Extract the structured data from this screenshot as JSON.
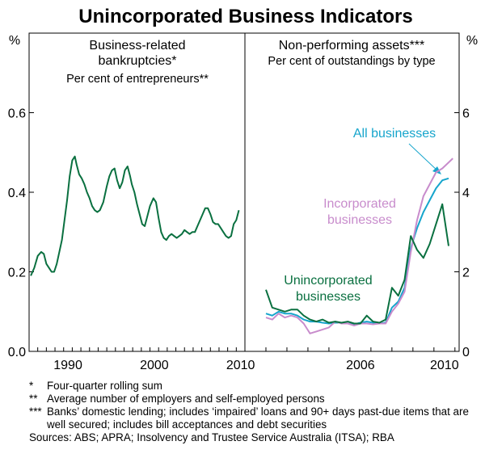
{
  "title": "Unincorporated Business Indicators",
  "chart_data": [
    {
      "type": "line",
      "panel": "left",
      "title": "Business-related",
      "title_line2": "bankruptcies*",
      "subtitle": "Per cent of entrepreneurs**",
      "ylabel": "%",
      "xlim": [
        1986.0,
        2011.0
      ],
      "ylim": [
        0,
        0.8
      ],
      "yticks": [
        "0.0",
        "0.2",
        "0.4",
        "0.6"
      ],
      "xticks": [
        "1990",
        "2000",
        "2010"
      ],
      "grid": false,
      "series": [
        {
          "color": "#0a7040",
          "x": [
            1986.2,
            1986.6,
            1987.0,
            1987.4,
            1987.7,
            1988.0,
            1988.3,
            1988.6,
            1988.9,
            1989.2,
            1989.5,
            1989.8,
            1990.1,
            1990.4,
            1990.7,
            1991.0,
            1991.3,
            1991.5,
            1991.8,
            1992.1,
            1992.4,
            1992.7,
            1993.0,
            1993.3,
            1993.6,
            1993.9,
            1994.2,
            1994.6,
            1995.0,
            1995.3,
            1995.6,
            1995.9,
            1996.2,
            1996.5,
            1996.8,
            1997.1,
            1997.4,
            1997.7,
            1997.9,
            1998.2,
            1998.5,
            1998.8,
            1999.1,
            1999.4,
            1999.7,
            2000.0,
            2000.4,
            2000.7,
            2001.0,
            2001.3,
            2001.6,
            2001.9,
            2002.2,
            2002.5,
            2002.8,
            2003.1,
            2003.4,
            2003.7,
            2004.0,
            2004.3,
            2004.6,
            2004.9,
            2005.2,
            2005.5,
            2005.8,
            2006.1,
            2006.4,
            2006.7,
            2007.0,
            2007.3,
            2007.6,
            2007.9,
            2008.2,
            2008.5,
            2008.8,
            2009.1,
            2009.4,
            2009.7,
            2010.0,
            2010.3
          ],
          "values": [
            0.19,
            0.21,
            0.24,
            0.25,
            0.245,
            0.22,
            0.21,
            0.2,
            0.2,
            0.22,
            0.25,
            0.28,
            0.33,
            0.38,
            0.44,
            0.48,
            0.49,
            0.47,
            0.445,
            0.435,
            0.42,
            0.4,
            0.385,
            0.365,
            0.355,
            0.35,
            0.355,
            0.375,
            0.415,
            0.44,
            0.455,
            0.46,
            0.43,
            0.41,
            0.425,
            0.455,
            0.465,
            0.44,
            0.42,
            0.4,
            0.37,
            0.345,
            0.32,
            0.315,
            0.34,
            0.365,
            0.385,
            0.375,
            0.335,
            0.3,
            0.285,
            0.28,
            0.29,
            0.295,
            0.29,
            0.285,
            0.29,
            0.295,
            0.305,
            0.3,
            0.295,
            0.3,
            0.3,
            0.315,
            0.33,
            0.345,
            0.36,
            0.36,
            0.345,
            0.325,
            0.32,
            0.32,
            0.31,
            0.3,
            0.29,
            0.285,
            0.29,
            0.32,
            0.33,
            0.355
          ]
        }
      ]
    },
    {
      "type": "line",
      "panel": "right",
      "title": "Non-performing assets***",
      "subtitle": "Per cent of outstandings by type",
      "ylabel": "%",
      "xlim": [
        2001.0,
        2011.2
      ],
      "ylim": [
        0,
        8
      ],
      "yticks": [
        "0",
        "2",
        "4",
        "6"
      ],
      "xticks": [
        "2006",
        "2010"
      ],
      "grid": false,
      "series": [
        {
          "name": "All businesses",
          "color": "#16a5cc",
          "x": [
            2002.0,
            2002.3,
            2002.6,
            2002.9,
            2003.2,
            2003.5,
            2003.8,
            2004.1,
            2004.4,
            2004.7,
            2005.0,
            2005.3,
            2005.6,
            2005.9,
            2006.2,
            2006.5,
            2006.8,
            2007.1,
            2007.4,
            2007.7,
            2008.0,
            2008.3,
            2008.6,
            2008.9,
            2009.2,
            2009.5,
            2009.8,
            2010.1,
            2010.4,
            2010.7
          ],
          "values": [
            0.95,
            0.9,
            1.0,
            0.95,
            0.95,
            0.9,
            0.8,
            0.75,
            0.75,
            0.72,
            0.7,
            0.72,
            0.72,
            0.7,
            0.68,
            0.72,
            0.75,
            0.72,
            0.7,
            0.72,
            1.1,
            1.25,
            1.6,
            2.6,
            3.1,
            3.5,
            3.8,
            4.1,
            4.3,
            4.35
          ]
        },
        {
          "name": "Incorporated businesses",
          "color": "#c88ccc",
          "x": [
            2002.0,
            2002.3,
            2002.6,
            2002.9,
            2003.2,
            2003.5,
            2003.8,
            2004.1,
            2004.4,
            2004.7,
            2005.0,
            2005.3,
            2005.6,
            2005.9,
            2006.2,
            2006.5,
            2006.8,
            2007.1,
            2007.4,
            2007.7,
            2008.0,
            2008.3,
            2008.6,
            2008.9,
            2009.2,
            2009.5,
            2009.8,
            2010.1,
            2010.4,
            2010.7,
            2010.9
          ],
          "values": [
            0.85,
            0.8,
            0.95,
            0.85,
            0.9,
            0.85,
            0.7,
            0.45,
            0.5,
            0.55,
            0.6,
            0.75,
            0.7,
            0.7,
            0.65,
            0.7,
            0.7,
            0.68,
            0.7,
            0.7,
            1.0,
            1.2,
            1.5,
            2.5,
            3.3,
            3.9,
            4.2,
            4.5,
            4.6,
            4.75,
            4.85
          ]
        },
        {
          "name": "Unincorporated businesses",
          "color": "#0a7040",
          "x": [
            2002.0,
            2002.3,
            2002.6,
            2002.9,
            2003.2,
            2003.5,
            2003.8,
            2004.1,
            2004.4,
            2004.7,
            2005.0,
            2005.3,
            2005.6,
            2005.9,
            2006.2,
            2006.5,
            2006.8,
            2007.1,
            2007.4,
            2007.7,
            2008.0,
            2008.3,
            2008.6,
            2008.9,
            2009.2,
            2009.5,
            2009.8,
            2010.1,
            2010.4,
            2010.7
          ],
          "values": [
            1.55,
            1.1,
            1.05,
            1.0,
            1.05,
            1.05,
            0.9,
            0.8,
            0.75,
            0.8,
            0.72,
            0.75,
            0.72,
            0.75,
            0.7,
            0.7,
            0.9,
            0.75,
            0.72,
            0.8,
            1.6,
            1.4,
            1.8,
            2.9,
            2.55,
            2.35,
            2.7,
            3.2,
            3.7,
            2.65
          ]
        }
      ]
    }
  ],
  "notes": [
    {
      "mark": "*",
      "text": "Four-quarter rolling sum"
    },
    {
      "mark": "**",
      "text": "Average number of employers and self-employed persons"
    },
    {
      "mark": "***",
      "text": "Banks’ domestic lending; includes ‘impaired’ loans and 90+ days past-due items that are well secured; includes bill acceptances and debt securities"
    }
  ],
  "source": "Sources: ABS; APRA; Insolvency and Trustee Service Australia (ITSA); RBA"
}
